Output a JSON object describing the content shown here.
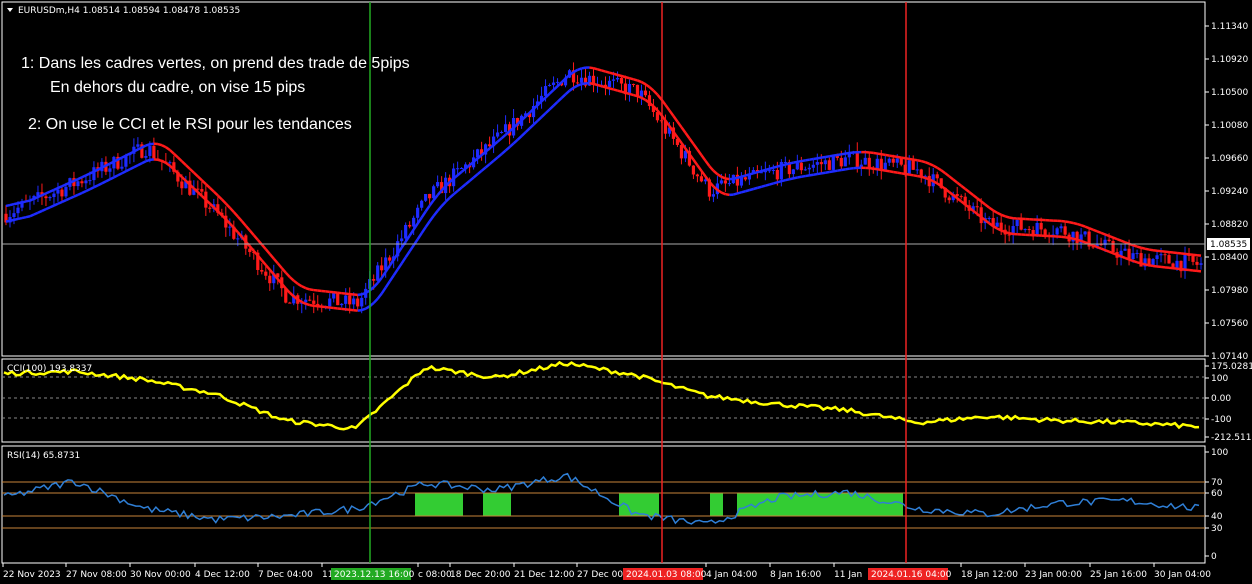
{
  "window": {
    "symbol_header": "EURUSDm,H4  1.08514 1.08594 1.08478 1.08535",
    "current_price_label": "1.08535"
  },
  "annotations": {
    "line1": "1: Dans les cadres vertes, on prend des trade de 5pips",
    "line2": "En dehors du cadre, on vise 15 pips",
    "line3": "2: On use le CCI et le RSI pour les tendances"
  },
  "price_axis": {
    "ticks": [
      "1.11340",
      "1.10920",
      "1.10500",
      "1.10080",
      "1.09660",
      "1.09240",
      "1.08820",
      "1.08400",
      "1.07980",
      "1.07560",
      "1.07140"
    ]
  },
  "cci": {
    "header": "CCI(100) 193.8337",
    "ticks": [
      "175.0281",
      "100",
      "0.00",
      "-100",
      "-212.5116"
    ]
  },
  "rsi": {
    "header": "RSI(14) 65.8731",
    "ticks": [
      "100",
      "70",
      "60",
      "40",
      "30",
      "0"
    ]
  },
  "time_axis": {
    "labels": [
      "22 Nov 2023",
      "27 Nov 08:00",
      "30 Nov 00:00",
      "4 Dec 12:00",
      "7 Dec 04:00",
      "11",
      "c 08:00",
      "18 Dec 20:00",
      "21 Dec 12:00",
      "27 Dec 00:",
      "4 Jan 04:00",
      "8 Jan 16:00",
      "11 Jan",
      "18 Jan 12:00",
      "23 Jan 00:00",
      "25 Jan 16:00",
      "30 Jan 04:00"
    ],
    "markers": [
      {
        "label": "2023.12.13 16:00",
        "color": "#22aa22"
      },
      {
        "label": "2024.01.03 08:00",
        "color": "#ee2222"
      },
      {
        "label": "2024.01.16 04:00",
        "color": "#ee2222"
      }
    ]
  },
  "colors": {
    "bull": "#1e2cff",
    "bear": "#ff1a1a",
    "cci_line": "#ffff00",
    "rsi_line": "#2f7fd6",
    "rsi_box": "#33cc33",
    "level_line": "#c8843a",
    "green_vline": "#22aa22",
    "red_vline": "#ee2222"
  },
  "chart_data": [
    {
      "type": "line",
      "title": "EURUSDm,H4",
      "ylim": [
        1.0714,
        1.1155
      ],
      "x": [
        "22 Nov 2023",
        "27 Nov 08:00",
        "30 Nov 00:00",
        "4 Dec 12:00",
        "7 Dec 04:00",
        "13 Dec 16:00",
        "18 Dec 20:00",
        "21 Dec 12:00",
        "27 Dec 00:00",
        "3 Jan 08:00",
        "4 Jan 04:00",
        "8 Jan 16:00",
        "11 Jan",
        "16 Jan 04:00",
        "18 Jan 12:00",
        "23 Jan 00:00",
        "25 Jan 16:00",
        "30 Jan 04:00"
      ],
      "series": [
        {
          "name": "Close",
          "values": [
            1.0895,
            1.0935,
            1.098,
            1.0895,
            1.079,
            1.078,
            1.0915,
            1.099,
            1.1075,
            1.105,
            1.0925,
            1.095,
            1.0965,
            1.095,
            1.088,
            1.0875,
            1.084,
            1.083
          ]
        }
      ],
      "current_price": 1.08535
    },
    {
      "type": "line",
      "title": "CCI(100) 193.8337",
      "ylim": [
        -212.5116,
        175.0281
      ],
      "levels": [
        100,
        0,
        -100
      ],
      "series": [
        {
          "values": [
            120,
            130,
            90,
            20,
            -110,
            -150,
            150,
            100,
            170,
            110,
            10,
            -30,
            -60,
            -120,
            -90,
            -110,
            -120,
            -140
          ]
        }
      ]
    },
    {
      "type": "line",
      "title": "RSI(14) 65.8731",
      "ylim": [
        0,
        100
      ],
      "levels": [
        70,
        60,
        40,
        30
      ],
      "series": [
        {
          "values": [
            55,
            70,
            45,
            35,
            38,
            45,
            68,
            62,
            75,
            40,
            30,
            55,
            60,
            45,
            40,
            50,
            52,
            45
          ]
        }
      ],
      "highlight_boxes": [
        {
          "from_x": "13 Dec 16:00",
          "label": ""
        }
      ]
    }
  ]
}
